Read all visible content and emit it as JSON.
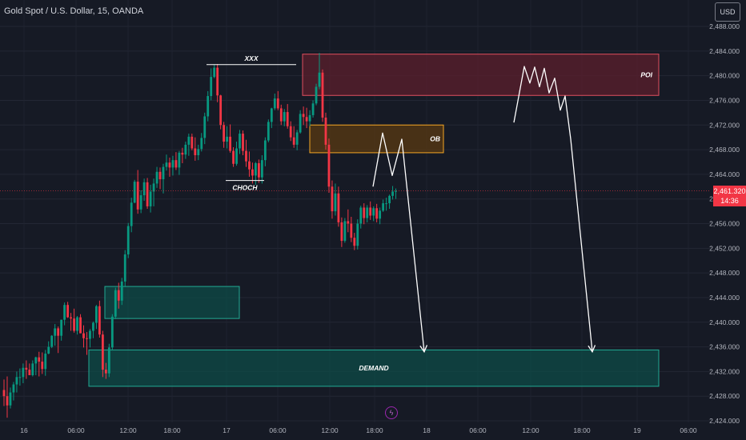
{
  "header": {
    "symbol_title": "Gold Spot / U.S. Dollar, 15, OANDA"
  },
  "currency": {
    "label": "USD"
  },
  "last_price": {
    "price": "2,461.320",
    "countdown": "14:36"
  },
  "lightning": {
    "icon": "lightning-icon",
    "glyph": "ϟ"
  },
  "colors": {
    "background": "#161a25",
    "bull": "#089981",
    "bear": "#f23645",
    "demand_fill": "#0d4f49",
    "demand_border": "#22ab94",
    "poi_fill": "#5c1f2c",
    "poi_border": "#e04e5e",
    "ob_fill": "#5a3a12",
    "ob_border": "#f5a623",
    "drawing": "#ffffff"
  },
  "chart_data": {
    "type": "candlestick",
    "symbol": "Gold Spot / U.S. Dollar",
    "interval": "15",
    "source": "OANDA",
    "ylim": [
      2424,
      2490
    ],
    "y_ticks": [
      "2,488.000",
      "2,484.000",
      "2,480.000",
      "2,476.000",
      "2,472.000",
      "2,468.000",
      "2,464.000",
      "2,460.000",
      "2,456.000",
      "2,452.000",
      "2,448.000",
      "2,444.000",
      "2,440.000",
      "2,436.000",
      "2,432.000",
      "2,428.000",
      "2,424.000"
    ],
    "x_ticks": [
      "16",
      "06:00",
      "12:00",
      "18:00",
      "17",
      "06:00",
      "12:00",
      "18:00",
      "18",
      "06:00",
      "12:00",
      "18:00",
      "19",
      "06:00"
    ],
    "last_price": 2461.32,
    "candles_ohlc": [
      [
        2429.0,
        2430.7,
        2426.4,
        2428.0
      ],
      [
        2428.0,
        2431.2,
        2424.5,
        2426.5
      ],
      [
        2426.5,
        2429.4,
        2426.0,
        2428.6
      ],
      [
        2428.6,
        2430.3,
        2427.3,
        2429.9
      ],
      [
        2429.9,
        2432.0,
        2428.6,
        2431.1
      ],
      [
        2431.1,
        2432.5,
        2429.7,
        2431.1
      ],
      [
        2431.1,
        2433.3,
        2430.1,
        2432.6
      ],
      [
        2432.6,
        2433.8,
        2430.8,
        2432.3
      ],
      [
        2432.3,
        2433.3,
        2431.4,
        2431.4
      ],
      [
        2431.4,
        2433.8,
        2431.2,
        2433.3
      ],
      [
        2433.3,
        2434.4,
        2431.4,
        2434.3
      ],
      [
        2434.3,
        2435.2,
        2431.2,
        2433.6
      ],
      [
        2433.6,
        2435.1,
        2431.6,
        2432.4
      ],
      [
        2432.4,
        2435.5,
        2431.3,
        2434.9
      ],
      [
        2434.9,
        2436.9,
        2434.8,
        2436.0
      ],
      [
        2436.0,
        2437.9,
        2435.8,
        2437.8
      ],
      [
        2437.8,
        2439.7,
        2436.2,
        2439.0
      ],
      [
        2439.0,
        2439.3,
        2435.0,
        2437.8
      ],
      [
        2437.8,
        2440.4,
        2437.0,
        2440.4
      ],
      [
        2440.4,
        2443.2,
        2439.5,
        2442.8
      ],
      [
        2442.8,
        2443.3,
        2440.7,
        2440.8
      ],
      [
        2440.8,
        2441.5,
        2438.6,
        2440.6
      ],
      [
        2440.6,
        2442.2,
        2438.3,
        2438.6
      ],
      [
        2438.6,
        2441.0,
        2438.0,
        2440.8
      ],
      [
        2440.8,
        2441.3,
        2438.2,
        2438.2
      ],
      [
        2438.2,
        2439.5,
        2435.9,
        2437.4
      ],
      [
        2437.4,
        2438.4,
        2434.7,
        2437.3
      ],
      [
        2437.3,
        2438.9,
        2435.9,
        2438.6
      ],
      [
        2438.6,
        2440.1,
        2437.4,
        2439.9
      ],
      [
        2439.9,
        2442.8,
        2438.9,
        2442.6
      ],
      [
        2442.6,
        2443.5,
        2437.5,
        2438.0
      ],
      [
        2438.0,
        2438.6,
        2431.1,
        2432.3
      ],
      [
        2432.3,
        2433.4,
        2430.8,
        2431.7
      ],
      [
        2431.7,
        2436.5,
        2431.1,
        2435.9
      ],
      [
        2435.9,
        2441.3,
        2435.4,
        2440.9
      ],
      [
        2440.9,
        2445.6,
        2440.5,
        2445.2
      ],
      [
        2445.2,
        2446.4,
        2442.2,
        2443.5
      ],
      [
        2443.5,
        2447.2,
        2442.8,
        2446.6
      ],
      [
        2446.6,
        2451.7,
        2445.7,
        2451.0
      ],
      [
        2451.0,
        2456.1,
        2450.4,
        2455.6
      ],
      [
        2455.6,
        2460.2,
        2454.6,
        2459.4
      ],
      [
        2459.4,
        2463.1,
        2459.3,
        2462.8
      ],
      [
        2462.8,
        2464.7,
        2457.6,
        2458.3
      ],
      [
        2458.3,
        2461.4,
        2457.7,
        2460.6
      ],
      [
        2460.6,
        2463.3,
        2459.7,
        2462.7
      ],
      [
        2462.7,
        2463.4,
        2458.4,
        2458.8
      ],
      [
        2458.8,
        2462.3,
        2457.8,
        2461.2
      ],
      [
        2461.2,
        2463.3,
        2458.8,
        2462.5
      ],
      [
        2462.5,
        2465.2,
        2461.8,
        2464.4
      ],
      [
        2464.4,
        2465.1,
        2461.6,
        2463.2
      ],
      [
        2463.2,
        2465.7,
        2460.9,
        2465.2
      ],
      [
        2465.2,
        2467.2,
        2464.6,
        2465.9
      ],
      [
        2465.9,
        2466.7,
        2463.6,
        2465.1
      ],
      [
        2465.1,
        2467.0,
        2463.8,
        2466.3
      ],
      [
        2466.3,
        2467.6,
        2464.7,
        2465.1
      ],
      [
        2465.1,
        2467.8,
        2463.9,
        2467.5
      ],
      [
        2467.5,
        2468.3,
        2465.8,
        2467.2
      ],
      [
        2467.2,
        2469.3,
        2466.5,
        2468.8
      ],
      [
        2468.8,
        2470.6,
        2467.0,
        2470.1
      ],
      [
        2470.1,
        2470.6,
        2467.9,
        2468.2
      ],
      [
        2468.2,
        2470.0,
        2466.2,
        2467.1
      ],
      [
        2467.1,
        2468.8,
        2466.3,
        2468.1
      ],
      [
        2468.1,
        2470.7,
        2467.7,
        2469.9
      ],
      [
        2469.9,
        2474.0,
        2468.9,
        2473.4
      ],
      [
        2473.4,
        2477.5,
        2472.6,
        2476.7
      ],
      [
        2476.7,
        2481.2,
        2476.0,
        2479.8
      ],
      [
        2479.8,
        2481.8,
        2479.6,
        2481.3
      ],
      [
        2481.3,
        2481.9,
        2475.7,
        2476.8
      ],
      [
        2476.8,
        2476.9,
        2471.3,
        2472.0
      ],
      [
        2472.0,
        2472.5,
        2468.3,
        2469.3
      ],
      [
        2469.3,
        2471.8,
        2468.2,
        2470.1
      ],
      [
        2470.1,
        2472.1,
        2467.5,
        2467.8
      ],
      [
        2467.8,
        2468.4,
        2465.2,
        2465.7
      ],
      [
        2465.7,
        2469.3,
        2465.4,
        2468.2
      ],
      [
        2468.2,
        2471.2,
        2467.3,
        2470.6
      ],
      [
        2470.6,
        2471.1,
        2467.1,
        2467.8
      ],
      [
        2467.8,
        2469.6,
        2465.2,
        2466.1
      ],
      [
        2466.1,
        2467.7,
        2463.6,
        2464.8
      ],
      [
        2464.8,
        2465.9,
        2462.5,
        2463.8
      ],
      [
        2463.8,
        2466.0,
        2462.3,
        2465.8
      ],
      [
        2465.8,
        2466.4,
        2462.6,
        2463.5
      ],
      [
        2463.5,
        2467.1,
        2462.5,
        2466.3
      ],
      [
        2466.3,
        2470.0,
        2465.3,
        2469.5
      ],
      [
        2469.5,
        2472.9,
        2469.2,
        2472.5
      ],
      [
        2472.5,
        2474.8,
        2471.5,
        2474.7
      ],
      [
        2474.7,
        2477.1,
        2474.4,
        2476.3
      ],
      [
        2476.3,
        2477.5,
        2474.4,
        2474.7
      ],
      [
        2474.7,
        2475.3,
        2472.0,
        2472.6
      ],
      [
        2472.6,
        2474.6,
        2471.8,
        2474.1
      ],
      [
        2474.1,
        2475.4,
        2471.4,
        2471.8
      ],
      [
        2471.8,
        2472.6,
        2469.4,
        2470.0
      ],
      [
        2470.0,
        2471.8,
        2468.3,
        2468.8
      ],
      [
        2468.8,
        2471.2,
        2467.9,
        2470.8
      ],
      [
        2470.8,
        2474.4,
        2470.6,
        2473.8
      ],
      [
        2473.8,
        2475.0,
        2472.0,
        2473.3
      ],
      [
        2473.3,
        2474.8,
        2471.5,
        2472.6
      ],
      [
        2472.6,
        2474.4,
        2471.8,
        2473.6
      ],
      [
        2473.6,
        2476.0,
        2473.2,
        2475.5
      ],
      [
        2475.5,
        2478.7,
        2475.2,
        2478.2
      ],
      [
        2478.2,
        2483.7,
        2477.8,
        2480.5
      ],
      [
        2480.5,
        2481.0,
        2472.5,
        2473.2
      ],
      [
        2473.2,
        2474.0,
        2468.0,
        2468.8
      ],
      [
        2468.8,
        2469.8,
        2461.0,
        2462.0
      ],
      [
        2462.0,
        2463.0,
        2456.8,
        2458.0
      ],
      [
        2458.0,
        2462.5,
        2457.3,
        2460.9
      ],
      [
        2460.9,
        2462.0,
        2455.5,
        2456.2
      ],
      [
        2456.2,
        2457.0,
        2452.2,
        2453.2
      ],
      [
        2453.2,
        2456.9,
        2452.9,
        2456.4
      ],
      [
        2456.4,
        2458.3,
        2454.6,
        2456.0
      ],
      [
        2456.0,
        2457.1,
        2453.0,
        2453.7
      ],
      [
        2453.7,
        2454.5,
        2451.7,
        2452.4
      ],
      [
        2452.4,
        2456.7,
        2451.8,
        2456.0
      ],
      [
        2456.0,
        2458.9,
        2455.2,
        2458.6
      ],
      [
        2458.6,
        2459.3,
        2455.9,
        2456.9
      ],
      [
        2456.9,
        2459.0,
        2456.2,
        2458.6
      ],
      [
        2458.6,
        2459.6,
        2456.6,
        2457.3
      ],
      [
        2457.3,
        2458.8,
        2456.4,
        2458.5
      ],
      [
        2458.5,
        2459.2,
        2456.2,
        2456.8
      ],
      [
        2456.8,
        2458.6,
        2455.9,
        2458.1
      ],
      [
        2458.1,
        2459.9,
        2457.9,
        2459.3
      ],
      [
        2459.3,
        2460.2,
        2458.1,
        2459.3
      ],
      [
        2459.3,
        2460.7,
        2458.4,
        2460.5
      ],
      [
        2460.5,
        2462.1,
        2459.9,
        2461.2
      ],
      [
        2461.2,
        2461.7,
        2460.0,
        2461.3
      ]
    ],
    "zones": [
      {
        "label": "POI",
        "y_top": 2483.5,
        "y_bottom": 2476.8
      },
      {
        "label": "OB",
        "y_top": 2472.0,
        "y_bottom": 2467.5
      },
      {
        "label": "",
        "y_top": 2445.8,
        "y_bottom": 2440.6
      },
      {
        "label": "DEMAND",
        "y_top": 2435.5,
        "y_bottom": 2429.6
      }
    ],
    "annotations": [
      {
        "text": "XXX",
        "price": 2481.8
      },
      {
        "text": "CHOCH",
        "price": 2463.0
      }
    ],
    "projections": [
      {
        "points": [
          [
            2462.0
          ],
          [
            2470.7
          ],
          [
            2463.8
          ],
          [
            2469.7
          ],
          [
            2435.2
          ]
        ]
      },
      {
        "points": [
          [
            2472.4
          ],
          [
            2481.5
          ],
          [
            2478.8
          ],
          [
            2481.4
          ],
          [
            2478.2
          ],
          [
            2481.2
          ],
          [
            2477.2
          ],
          [
            2479.6
          ],
          [
            2474.4
          ],
          [
            2476.7
          ],
          [
            2469.7
          ],
          [
            2435.2
          ]
        ]
      }
    ]
  }
}
